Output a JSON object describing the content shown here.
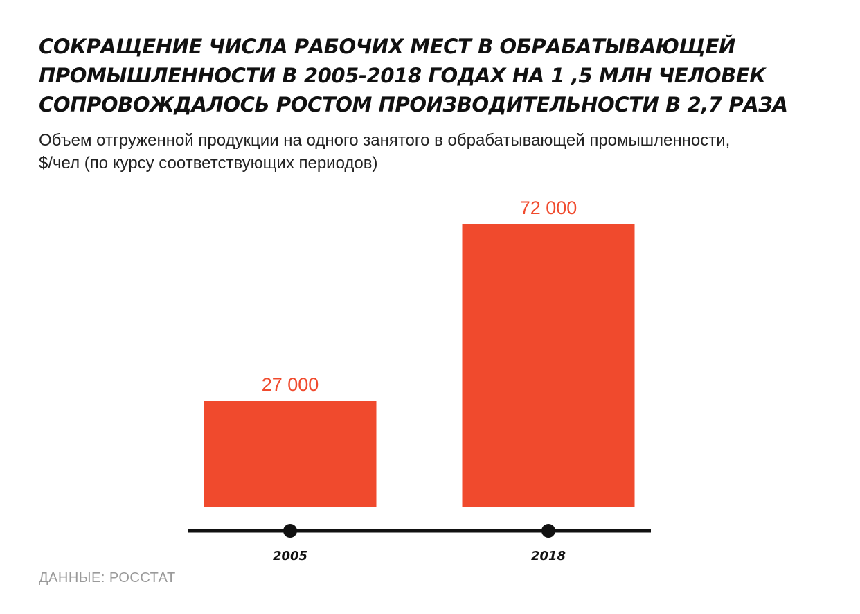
{
  "title": "Сокращение числа рабочих мест в обрабатывающей промышленности в 2005-2018 годах на 1 ,5 млн человек сопровождалось ростом производительности в 2,7 раза",
  "subtitle": "Объем отгруженной продукции на одного занятого в обрабатывающей промышленности, $/чел (по курсу соответствующих периодов)",
  "source": "ДАННЫЕ: РОССТАТ",
  "colors": {
    "bar": "#f04a2d",
    "label": "#f04a2d",
    "axis": "#111111"
  },
  "chart_data": {
    "type": "bar",
    "title": "Сокращение числа рабочих мест в обрабатывающей промышленности в 2005-2018 годах на 1 ,5 млн человек сопровождалось ростом производительности в 2,7 раза",
    "subtitle": "Объем отгруженной продукции на одного занятого в обрабатывающей промышленности, $/чел (по курсу соответствующих периодов)",
    "categories": [
      "2005",
      "2018"
    ],
    "values": [
      27000,
      72000
    ],
    "value_labels": [
      "27 000",
      "72 000"
    ],
    "xlabel": "",
    "ylabel": "",
    "ylim": [
      0,
      72000
    ],
    "grid": false,
    "legend": "none"
  }
}
